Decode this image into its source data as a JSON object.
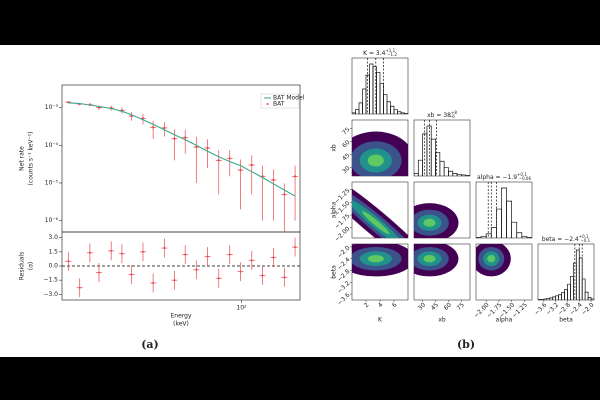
{
  "chart_data": [
    {
      "type": "line",
      "caption": "(a)",
      "y_label": [
        "Net rate",
        "(counts s⁻¹ keV⁻¹)"
      ],
      "residual_label": [
        "Residuals",
        "(σ)"
      ],
      "x_label": [
        "Energy",
        "(keV)"
      ],
      "log_x": true,
      "log_y": true,
      "xlim": [
        14,
        190
      ],
      "xticks": [
        {
          "value": 100,
          "label": "10²"
        }
      ],
      "ylim": [
        5e-07,
        0.004
      ],
      "yticks": [
        {
          "value": 0.001,
          "label": "10⁻³"
        },
        {
          "value": 0.0001,
          "label": "10⁻⁴"
        },
        {
          "value": 1e-05,
          "label": "10⁻⁵"
        },
        {
          "value": 1e-06,
          "label": "10⁻⁶"
        }
      ],
      "legend": "upper right",
      "x": [
        15,
        17,
        19,
        21,
        24,
        27,
        30,
        34,
        38,
        43,
        48,
        54,
        61,
        69,
        78,
        88,
        99,
        112,
        126,
        142,
        160,
        180
      ],
      "series": [
        {
          "name": "BAT Model",
          "color": "#3aa98a",
          "values": [
            0.00135,
            0.00128,
            0.00118,
            0.00108,
            0.00095,
            0.0008,
            0.00065,
            0.00048,
            0.00036,
            0.00026,
            0.00019,
            0.00014,
            0.0001,
            7e-05,
            5e-05,
            3.7e-05,
            2.9e-05,
            2e-05,
            1.4e-05,
            9.5e-06,
            6.5e-06,
            4.5e-06
          ]
        },
        {
          "name": "BAT",
          "color": "#e8474a",
          "values": [
            0.0014,
            0.00125,
            0.0012,
            0.001,
            0.00098,
            0.00085,
            0.0006,
            0.00052,
            0.0003,
            0.00029,
            0.00015,
            0.00016,
            9e-05,
            8.5e-05,
            4e-05,
            4.5e-05,
            2.2e-05,
            3e-05,
            1.5e-05,
            1.2e-05,
            5e-06,
            1.5e-05
          ],
          "errors": [
            0.0001,
            0.0001,
            0.00012,
            0.00012,
            0.00015,
            0.00015,
            0.00015,
            0.00016,
            0.00015,
            0.00012,
            0.00011,
            0.0001,
            8e-05,
            6e-05,
            3.5e-05,
            3e-05,
            2e-05,
            2.5e-05,
            1.4e-05,
            1.1e-05,
            4.8e-06,
            1.4e-05
          ]
        }
      ],
      "residuals": {
        "values": [
          0.5,
          -2.3,
          1.4,
          -0.7,
          1.6,
          1.3,
          -0.9,
          1.5,
          -1.8,
          1.9,
          -1.5,
          1.2,
          -0.4,
          1.0,
          -1.3,
          1.2,
          -0.6,
          0.6,
          -1.0,
          0.9,
          -1.2,
          2.0
        ],
        "errors": [
          1,
          1,
          1,
          1,
          1,
          1,
          1,
          1,
          1,
          1,
          1,
          1,
          1,
          1,
          1,
          1,
          1,
          1,
          1,
          1,
          1,
          1
        ]
      },
      "residual_ylim": [
        -3.6,
        3.6
      ],
      "residual_yticks": [
        {
          "value": 3,
          "label": "3.0"
        },
        {
          "value": 1.5,
          "label": "1.5"
        },
        {
          "value": 0,
          "label": "0.0"
        },
        {
          "value": -1.5,
          "label": "−1.5"
        },
        {
          "value": -3,
          "label": "−3.0"
        }
      ]
    },
    {
      "type": "corner",
      "caption": "(b)",
      "parameters": [
        {
          "name": "K",
          "title": "K = 3.4",
          "upper": "+1.1",
          "lower": "−1.2",
          "xlim": [
            0,
            8
          ],
          "ticks": [
            2,
            4,
            6
          ],
          "bins": [
            0,
            0.5,
            1,
            1.5,
            2,
            2.5,
            3,
            3.5,
            4,
            4.5,
            5,
            5.5,
            6,
            6.5,
            7,
            7.5,
            8
          ],
          "counts": [
            2,
            8,
            20,
            45,
            70,
            90,
            85,
            75,
            55,
            35,
            22,
            14,
            8,
            4,
            2,
            1
          ],
          "quantiles": [
            2.2,
            3.4,
            4.5
          ]
        },
        {
          "name": "xb",
          "title": "xb = 38",
          "upper": "+8",
          "lower": "−6",
          "xlim": [
            20,
            85
          ],
          "ticks": [
            30,
            45,
            60,
            75
          ],
          "bins": [
            20,
            25,
            30,
            35,
            40,
            45,
            50,
            55,
            60,
            65,
            70,
            75,
            80,
            85
          ],
          "counts": [
            5,
            30,
            80,
            95,
            70,
            45,
            28,
            16,
            9,
            5,
            3,
            2,
            1
          ],
          "quantiles": [
            32,
            38,
            46
          ]
        },
        {
          "name": "alpha",
          "title": "alpha = −1.9",
          "upper": "+0.1",
          "lower": "−0.06",
          "xlim": [
            -2.2,
            -1.1
          ],
          "ticks": [
            {
              "value": -2,
              "label": "−2.00"
            },
            {
              "value": -1.75,
              "label": "−1.75"
            },
            {
              "value": -1.5,
              "label": "−1.50"
            },
            {
              "value": -1.25,
              "label": "−1.25"
            }
          ],
          "bins": [
            -2.2,
            -2.1,
            -2.0,
            -1.9,
            -1.8,
            -1.7,
            -1.6,
            -1.5,
            -1.4,
            -1.3,
            -1.2,
            -1.1
          ],
          "counts": [
            1,
            3,
            8,
            20,
            55,
            95,
            70,
            30,
            10,
            3,
            1
          ],
          "quantiles": [
            -1.96,
            -1.9,
            -1.8
          ]
        },
        {
          "name": "beta",
          "title": "beta = −2.4",
          "upper": "+0.1",
          "lower": "−0.1",
          "xlim": [
            -3.8,
            -1.9
          ],
          "ticks": [
            {
              "value": -3.6,
              "label": "−3.6"
            },
            {
              "value": -3.2,
              "label": "−3.2"
            },
            {
              "value": -2.8,
              "label": "−2.8"
            },
            {
              "value": -2.4,
              "label": "−2.4"
            },
            {
              "value": -2,
              "label": "−2.0"
            }
          ],
          "bins": [
            -3.8,
            -3.7,
            -3.6,
            -3.5,
            -3.4,
            -3.3,
            -3.2,
            -3.1,
            -3.0,
            -2.9,
            -2.8,
            -2.7,
            -2.6,
            -2.5,
            -2.4,
            -2.3,
            -2.2,
            -2.1,
            -2.0,
            -1.9
          ],
          "counts": [
            1,
            1,
            2,
            3,
            4,
            6,
            8,
            10,
            14,
            20,
            30,
            45,
            70,
            95,
            80,
            40,
            15,
            5,
            2
          ],
          "quantiles": [
            -2.55,
            -2.4,
            -2.3
          ]
        }
      ],
      "density_colors": [
        "#440154",
        "#3b528b",
        "#21918c",
        "#5ec962"
      ]
    }
  ]
}
